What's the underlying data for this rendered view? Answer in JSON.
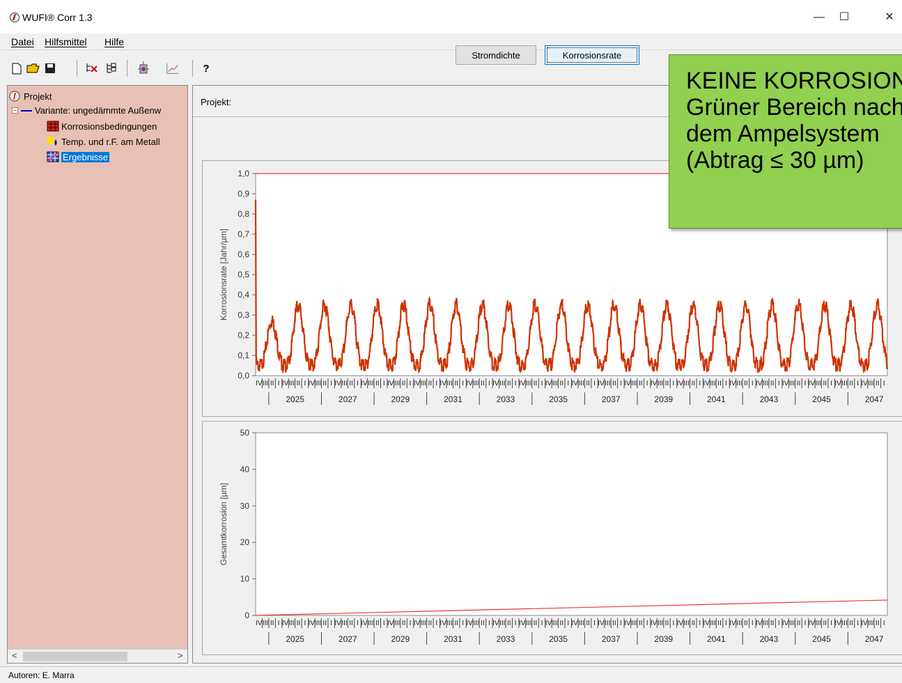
{
  "window": {
    "title": "WUFI® Corr 1.3",
    "minimize": "—",
    "maximize": "☐",
    "close": "✕"
  },
  "menu": {
    "items": [
      "Datei",
      "Hilfsmittel",
      "Hilfe"
    ]
  },
  "toolbar": {
    "help_label": "?"
  },
  "tree": {
    "root": "Projekt",
    "variant": "Variante: ungedämmte Außenw",
    "children": [
      "Korrosionsbedingungen",
      "Temp. und r.F. am Metall",
      "Ergebnisse"
    ],
    "selected": "Ergebnisse"
  },
  "project": {
    "label": "Projekt:"
  },
  "buttons": {
    "stromdichte": "Stromdichte",
    "korrosionsrate": "Korrosionsrate",
    "active": "Korrosionsrate"
  },
  "callout": {
    "lines": [
      "KEINE KORROSION",
      "Grüner Bereich nach",
      "dem Ampelsystem",
      "(Abtrag ≤ 30 µm)"
    ]
  },
  "status": {
    "text": "Autoren: E. Marra"
  },
  "colors": {
    "series": "#cc3300",
    "limit_line": "#ee3333",
    "sidebar": "#e8c0b5",
    "callout": "#92d050"
  },
  "chart_data": [
    {
      "type": "line",
      "ylabel": "Korrosionsrate [Jahr/µm]",
      "ylim": [
        0,
        1.0
      ],
      "yticks": [
        "0,0",
        "0,1",
        "0,2",
        "0,3",
        "0,4",
        "0,5",
        "0,6",
        "0,7",
        "0,8",
        "0,9",
        "1,0"
      ],
      "x_range": [
        2024,
        2048
      ],
      "quarters": [
        "IV",
        "III",
        "II",
        "I"
      ],
      "year_labels": [
        "2025",
        "2027",
        "2029",
        "2031",
        "2033",
        "2035",
        "2037",
        "2039",
        "2041",
        "2043",
        "2045",
        "2047"
      ],
      "series": [
        {
          "values_description": "seasonal oscillation",
          "min": 0.05,
          "max": 0.35,
          "first_year_max": 0.27,
          "initial_spike": 0.87
        },
        {
          "constant": 1.0
        }
      ]
    },
    {
      "type": "line",
      "ylabel": "Gesamtkorrosion [µm]",
      "ylim": [
        0,
        50
      ],
      "yticks": [
        "0",
        "10",
        "20",
        "30",
        "40",
        "50"
      ],
      "x_range": [
        2024,
        2048
      ],
      "quarters": [
        "IV",
        "III",
        "II",
        "I"
      ],
      "year_labels": [
        "2025",
        "2027",
        "2029",
        "2031",
        "2033",
        "2035",
        "2037",
        "2039",
        "2041",
        "2043",
        "2045",
        "2047"
      ],
      "series": [
        {
          "start": 0,
          "end": 4.2
        }
      ]
    }
  ]
}
